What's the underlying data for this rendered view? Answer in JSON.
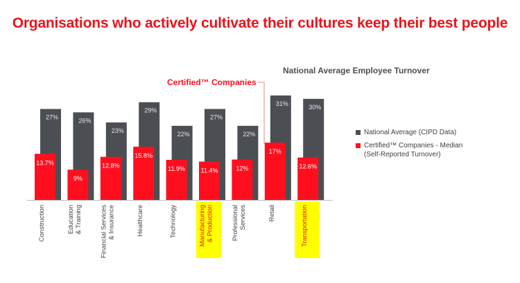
{
  "title": "Organisations who actively cultivate their cultures keep their best people",
  "colors": {
    "national": "#4b4f54",
    "certified": "#ff0f1e",
    "title": "#e8141c",
    "highlight": "#ffff00",
    "callout_line": "#f08080"
  },
  "legend": {
    "national": "National Average (CIPD Data)",
    "certified_line1": "Certified™ Companies - Median",
    "certified_line2": "(Self-Reported Turnover)"
  },
  "callouts": {
    "national": "National Average Employee Turnover",
    "certified": "Certified™ Companies"
  },
  "chart_data": {
    "type": "bar",
    "categories": [
      [
        "Construction"
      ],
      [
        "Education",
        "& Training"
      ],
      [
        "Financial Services",
        "& Insurance"
      ],
      [
        "Healthcare"
      ],
      [
        "Technology"
      ],
      [
        "Manufacturing",
        "& Production"
      ],
      [
        "Professional",
        "Services"
      ],
      [
        "Retail"
      ],
      [
        "Transportation"
      ]
    ],
    "highlighted_categories": [
      5,
      8
    ],
    "series": [
      {
        "name": "National Average (CIPD Data)",
        "values": [
          27,
          26,
          23,
          29,
          22,
          27,
          22,
          31,
          30
        ],
        "labels": [
          "27%",
          "26%",
          "23%",
          "29%",
          "22%",
          "27%",
          "22%",
          "31%",
          "30%"
        ]
      },
      {
        "name": "Certified™ Companies - Median (Self-Reported Turnover)",
        "values": [
          13.7,
          9,
          12.8,
          15.8,
          11.9,
          11.4,
          12,
          17,
          12.6
        ],
        "labels": [
          "13.7%",
          "9%",
          "12.8%",
          "15.8%",
          "11.9%",
          "11.4%",
          "12%",
          "17%",
          "12.6%"
        ]
      }
    ],
    "ylim": [
      0,
      31
    ]
  }
}
